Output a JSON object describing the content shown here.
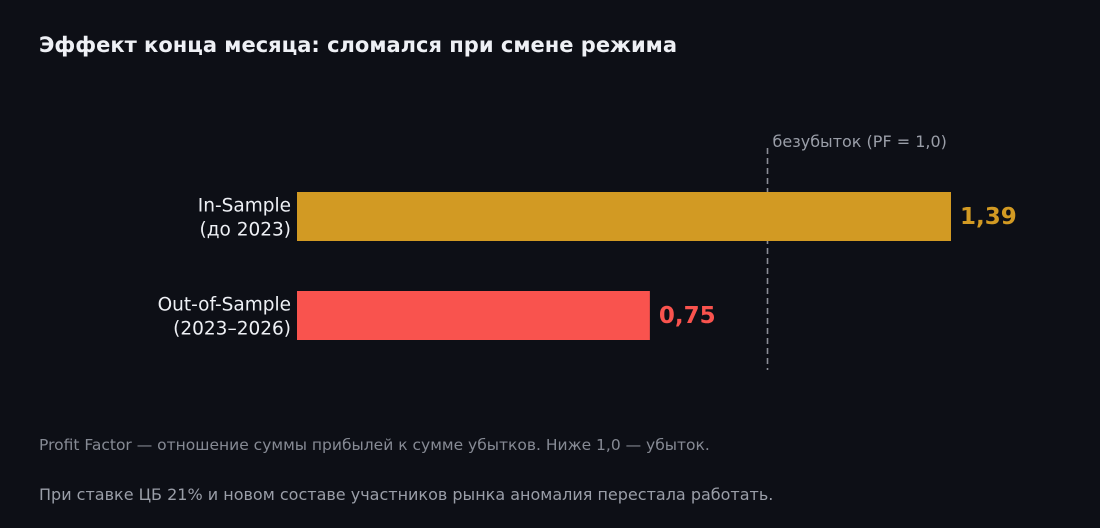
{
  "title": "Эффект конца месяца: сломался при смене режима",
  "footnote": "Profit Factor — отношение суммы прибылей к сумме убытков. Ниже 1,0 — убыток.",
  "subnote": "При ставке ЦБ 21% и новом составе участников рынка аномалия перестала работать.",
  "colors": {
    "background": "#0d0f16",
    "in_sample": "#d29a23",
    "out_of_sample": "#f9534e",
    "reference_line": "#8a8d96",
    "label": "#eef0f5"
  },
  "chart_data": {
    "type": "bar",
    "orientation": "horizontal",
    "categories": [
      [
        "In-Sample",
        "(до 2023)"
      ],
      [
        "Out-of-Sample",
        "(2023–2026)"
      ]
    ],
    "values": [
      1.39,
      0.75
    ],
    "value_labels": [
      "1,39",
      "0,75"
    ],
    "bar_colors": [
      "#d29a23",
      "#f9534e"
    ],
    "xlim": [
      0,
      1.39
    ],
    "reference_line": {
      "value": 1.0,
      "label": "безубыток (PF = 1,0)",
      "style": "dashed"
    },
    "grid": false,
    "legend": "none"
  }
}
